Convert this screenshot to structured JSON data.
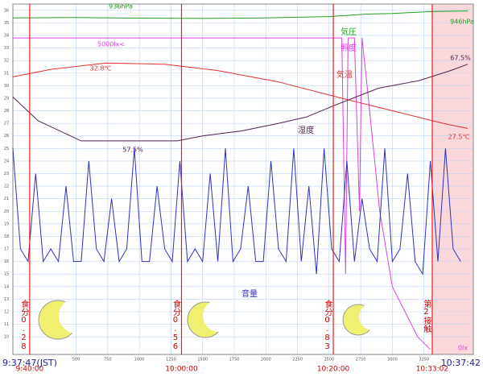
{
  "chart_data": {
    "type": "line",
    "xlim": [
      0,
      3640
    ],
    "xticks": [
      500,
      750,
      1000,
      1250,
      1500,
      1750,
      2000,
      2250,
      2500,
      2750,
      3000,
      3250
    ],
    "ylim": [
      8.6,
      36.5
    ],
    "yticks": [
      10,
      11,
      12,
      13,
      14,
      15,
      16,
      17,
      18,
      19,
      20,
      21,
      22,
      23,
      24,
      25,
      26,
      27,
      28,
      29,
      30,
      31,
      32,
      33,
      34,
      35,
      36
    ],
    "grid": true,
    "series": [
      {
        "name": "気圧",
        "color": "#20a020",
        "x": [
          0,
          500,
          1000,
          1500,
          2000,
          2500,
          2800,
          3000,
          3300,
          3595
        ],
        "values": [
          35.4,
          35.42,
          35.38,
          35.35,
          35.4,
          35.5,
          35.7,
          35.75,
          35.9,
          35.95
        ]
      },
      {
        "name": "照度",
        "color": "#e040e0",
        "x": [
          0,
          2600,
          2630,
          2650,
          2700,
          2740,
          2760,
          2800,
          2900,
          3000,
          3100,
          3200,
          3300
        ],
        "values": [
          33.8,
          33.8,
          15,
          33.8,
          33.8,
          20,
          33.8,
          30,
          20,
          14,
          12,
          10,
          9
        ]
      },
      {
        "name": "気温",
        "color": "#e03030",
        "x": [
          0,
          300,
          730,
          1200,
          1620,
          2100,
          2560,
          3000,
          3400,
          3595
        ],
        "values": [
          30.7,
          31.3,
          31.8,
          31.7,
          31.2,
          30.3,
          29.1,
          28.0,
          27.0,
          26.6
        ]
      },
      {
        "name": "湿度",
        "color": "#502050",
        "x": [
          0,
          200,
          540,
          1300,
          1500,
          1810,
          2100,
          2320,
          2560,
          2890,
          3210,
          3460,
          3595
        ],
        "values": [
          29.1,
          27.2,
          25.6,
          25.6,
          26.0,
          26.4,
          27.0,
          27.5,
          28.5,
          29.8,
          30.4,
          31.2,
          31.7
        ]
      },
      {
        "name": "音量",
        "color": "#3030c0",
        "x": [
          0,
          60,
          120,
          180,
          240,
          300,
          360,
          420,
          480,
          540,
          600,
          660,
          720,
          780,
          840,
          900,
          960,
          1020,
          1080,
          1140,
          1200,
          1260,
          1320,
          1380,
          1440,
          1500,
          1560,
          1620,
          1680,
          1740,
          1800,
          1860,
          1920,
          1980,
          2040,
          2100,
          2160,
          2220,
          2280,
          2340,
          2400,
          2460,
          2520,
          2580,
          2640,
          2700,
          2760,
          2820,
          2880,
          2940,
          3000,
          3060,
          3120,
          3180,
          3240,
          3300,
          3360,
          3420,
          3480,
          3540
        ],
        "values": [
          25,
          17,
          16,
          23,
          16,
          17,
          16,
          22,
          16,
          16,
          24,
          17,
          16,
          21,
          16,
          17,
          25,
          16,
          16,
          22,
          17,
          16,
          24,
          16,
          17,
          16,
          23,
          16,
          25,
          16,
          17,
          22,
          16,
          16,
          24,
          17,
          16,
          25,
          16,
          22,
          15,
          25,
          17,
          16,
          24,
          16,
          21,
          17,
          16,
          25,
          16,
          17,
          23,
          16,
          15,
          24,
          16,
          25,
          17,
          16
        ]
      }
    ],
    "annotations": [
      "936hPa",
      "946hPa",
      "5000lx<",
      "32.8℃",
      "67.5%",
      "57.5%",
      "27.5℃",
      "0lx"
    ],
    "markers": [
      {
        "x": 133,
        "label": "9:40:00",
        "eclipse": "食分0.28"
      },
      {
        "x": 1333,
        "label": "10:00:00",
        "eclipse": "食分0.56"
      },
      {
        "x": 2533,
        "label": "10:20:00",
        "eclipse": "食分0.83"
      },
      {
        "x": 3315,
        "label": "10:33:02",
        "eclipse": "第2接触"
      }
    ],
    "start_label": "9:37:47(JST)",
    "end_label": "10:37:42"
  }
}
